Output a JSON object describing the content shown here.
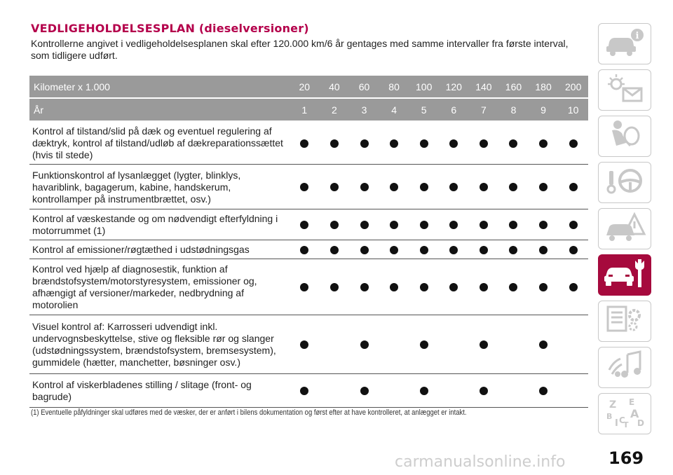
{
  "title": "VEDLIGEHOLDELSESPLAN (dieselversioner)",
  "intro": "Kontrollerne angivet i vedligeholdelsesplanen skal efter 120.000 km/6 år gentages med samme intervaller fra første interval, som tidligere udført.",
  "table": {
    "km_label": "Kilometer x 1.000",
    "km_values": [
      "20",
      "40",
      "60",
      "80",
      "100",
      "120",
      "140",
      "160",
      "180",
      "200"
    ],
    "year_label": "År",
    "year_values": [
      "1",
      "2",
      "3",
      "4",
      "5",
      "6",
      "7",
      "8",
      "9",
      "10"
    ],
    "rows": [
      {
        "label": "Kontrol af tilstand/slid på dæk og eventuel regulering af dæktryk, kontrol af tilstand/udløb af dækreparationssættet (hvis til stede)",
        "checks": [
          true,
          true,
          true,
          true,
          true,
          true,
          true,
          true,
          true,
          true
        ]
      },
      {
        "label": "Funktionskontrol af lysanlægget (lygter, blinklys, havariblink, bagagerum, kabine, handskerum, kontrollamper på instrumentbrættet, osv.)",
        "checks": [
          true,
          true,
          true,
          true,
          true,
          true,
          true,
          true,
          true,
          true
        ]
      },
      {
        "label": "Kontrol af væskestande og om nødvendigt efterfyldning i motorrummet (1)",
        "checks": [
          true,
          true,
          true,
          true,
          true,
          true,
          true,
          true,
          true,
          true
        ]
      },
      {
        "label": "Kontrol af emissioner/røgtæthed i udstødningsgas",
        "checks": [
          true,
          true,
          true,
          true,
          true,
          true,
          true,
          true,
          true,
          true
        ]
      },
      {
        "label": "Kontrol ved hjælp af diagnosestik, funktion af brændstofsystem/motorstyresystem, emissioner og, afhængigt af versioner/markeder, nedbrydning af motorolien",
        "checks": [
          true,
          true,
          true,
          true,
          true,
          true,
          true,
          true,
          true,
          true
        ]
      },
      {
        "label": "Visuel kontrol af: Karrosseri udvendigt inkl. undervognsbeskyttelse, stive og fleksible rør og slanger (udstødningssystem, brændstofsystem, bremsesystem), gummidele (hætter, manchetter, bøsninger osv.)",
        "checks": [
          true,
          false,
          true,
          false,
          true,
          false,
          true,
          false,
          true,
          false
        ]
      },
      {
        "label": "Kontrol af viskerbladenes stilling / slitage (front- og bagrude)",
        "checks": [
          true,
          false,
          true,
          false,
          true,
          false,
          true,
          false,
          true,
          false
        ]
      }
    ]
  },
  "footnote": "(1) Eventuelle påfyldninger skal udføres med de væsker, der er anført i bilens dokumentation og først efter at have kontrolleret, at anlægget er intakt.",
  "sidebar_tabs": [
    {
      "icon": "car-info-icon",
      "active": false
    },
    {
      "icon": "dashboard-lights-icon",
      "active": false
    },
    {
      "icon": "seat-airbag-icon",
      "active": false
    },
    {
      "icon": "steering-wheel-icon",
      "active": false
    },
    {
      "icon": "car-warning-icon",
      "active": false
    },
    {
      "icon": "car-service-icon",
      "active": true
    },
    {
      "icon": "specs-gear-icon",
      "active": false
    },
    {
      "icon": "multimedia-icon",
      "active": false
    },
    {
      "icon": "alphabet-index-icon",
      "active": false
    }
  ],
  "colors": {
    "title": "#b4004b",
    "header_bg": "#9a9a9a",
    "active_tab": "#a60a3d",
    "tab_icon": "#c8c8c8"
  },
  "page_number": "169",
  "watermark": "carmanualsonline.info"
}
